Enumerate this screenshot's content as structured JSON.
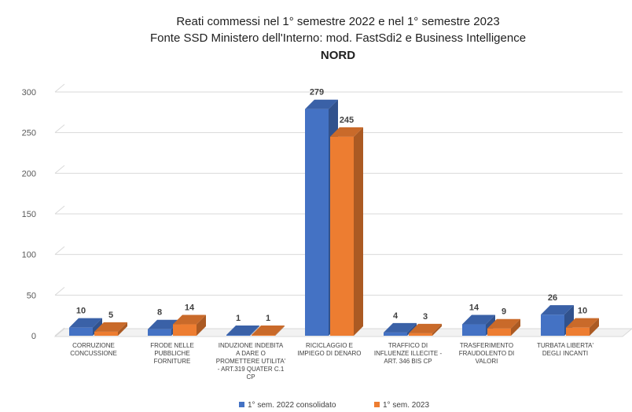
{
  "chart_data": {
    "type": "bar",
    "title_lines": [
      "Reati commessi nel 1° semestre 2022 e nel 1° semestre 2023",
      "Fonte SSD Ministero dell'Interno: mod. FastSdi2 e Business Intelligence",
      "NORD"
    ],
    "categories": [
      [
        "CORRUZIONE",
        "CONCUSSIONE"
      ],
      [
        "FRODE NELLE",
        "PUBBLICHE",
        "FORNITURE"
      ],
      [
        "INDUZIONE INDEBITA",
        "A DARE O",
        "PROMETTERE UTILITA'",
        "- ART.319 QUATER C.1",
        "CP"
      ],
      [
        "RICICLAGGIO E",
        "IMPIEGO DI DENARO"
      ],
      [
        "TRAFFICO DI",
        "INFLUENZE ILLECITE -",
        "ART. 346 BIS CP"
      ],
      [
        "TRASFERIMENTO",
        "FRAUDOLENTO DI",
        "VALORI"
      ],
      [
        "TURBATA LIBERTA'",
        "DEGLI INCANTI"
      ]
    ],
    "series": [
      {
        "name": "1° sem. 2022 consolidato",
        "color": "#4472C4",
        "values": [
          10,
          8,
          1,
          279,
          4,
          14,
          26
        ]
      },
      {
        "name": "1° sem. 2023",
        "color": "#ED7D31",
        "values": [
          5,
          14,
          1,
          245,
          3,
          9,
          10
        ]
      }
    ],
    "yticks": [
      0,
      50,
      100,
      150,
      200,
      250,
      300
    ],
    "ylim": [
      0,
      300
    ],
    "grid": true,
    "style": "3d-clustered-column",
    "legend_position": "bottom"
  }
}
